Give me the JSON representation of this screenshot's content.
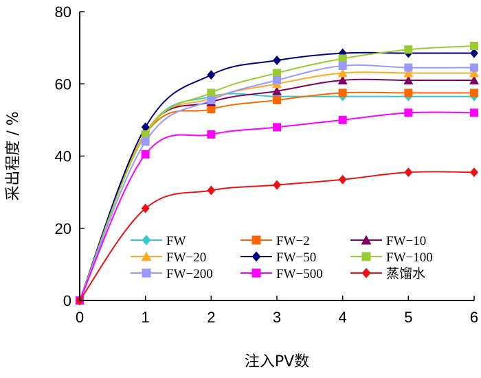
{
  "chart_data": {
    "type": "line",
    "title": "",
    "xlabel": "注入PV数",
    "ylabel": "采出程度 / %",
    "xlim": [
      0,
      6
    ],
    "ylim": [
      0,
      80
    ],
    "xticks": [
      0,
      1,
      2,
      3,
      4,
      5,
      6
    ],
    "yticks": [
      0,
      20,
      40,
      60,
      80
    ],
    "grid": false,
    "legend_position": "center-bottom",
    "series": [
      {
        "name": "FW",
        "color": "#33CCCC",
        "marker": "diamond",
        "x": [
          0,
          1,
          2,
          3,
          4,
          5,
          6
        ],
        "y": [
          0,
          46.5,
          56.5,
          56.5,
          56.5,
          56.5,
          56.5
        ]
      },
      {
        "name": "FW−2",
        "color": "#FF6600",
        "marker": "square",
        "x": [
          0,
          1,
          2,
          3,
          4,
          5,
          6
        ],
        "y": [
          0,
          46.0,
          53.0,
          55.5,
          57.5,
          57.5,
          57.5
        ]
      },
      {
        "name": "FW−10",
        "color": "#800060",
        "marker": "triangle",
        "x": [
          0,
          1,
          2,
          3,
          4,
          5,
          6
        ],
        "y": [
          0,
          46.5,
          55.0,
          58.0,
          61.0,
          61.0,
          61.0
        ]
      },
      {
        "name": "FW−20",
        "color": "#FFAA22",
        "marker": "triangle",
        "x": [
          0,
          1,
          2,
          3,
          4,
          5,
          6
        ],
        "y": [
          0,
          46.5,
          56.0,
          60.0,
          63.0,
          63.0,
          63.0
        ]
      },
      {
        "name": "FW−50",
        "color": "#000080",
        "marker": "diamond",
        "x": [
          0,
          1,
          2,
          3,
          4,
          5,
          6
        ],
        "y": [
          0,
          48.0,
          62.5,
          66.5,
          68.5,
          68.5,
          68.5
        ]
      },
      {
        "name": "FW−100",
        "color": "#99CC33",
        "marker": "square",
        "x": [
          0,
          1,
          2,
          3,
          4,
          5,
          6
        ],
        "y": [
          0,
          46.0,
          57.5,
          63.0,
          67.0,
          69.5,
          70.5
        ]
      },
      {
        "name": "FW−200",
        "color": "#9999FF",
        "marker": "square",
        "x": [
          0,
          1,
          2,
          3,
          4,
          5,
          6
        ],
        "y": [
          0,
          44.0,
          55.5,
          61.0,
          65.0,
          64.5,
          64.5
        ]
      },
      {
        "name": "FW−500",
        "color": "#FF00FF",
        "marker": "square",
        "x": [
          0,
          1,
          2,
          3,
          4,
          5,
          6
        ],
        "y": [
          0,
          40.5,
          46.0,
          48.0,
          50.0,
          52.0,
          52.0
        ]
      },
      {
        "name": "蒸馏水",
        "color": "#EE1111",
        "marker": "diamond",
        "x": [
          0,
          1,
          2,
          3,
          4,
          5,
          6
        ],
        "y": [
          0,
          25.5,
          30.5,
          32.0,
          33.5,
          35.5,
          35.5
        ]
      }
    ]
  }
}
